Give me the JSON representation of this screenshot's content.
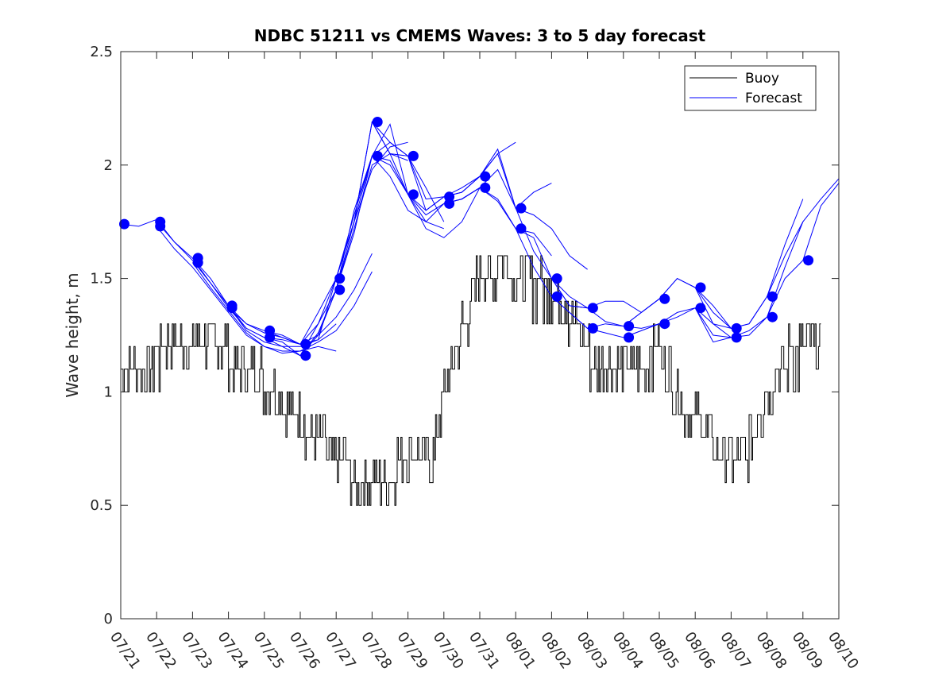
{
  "chart_data": {
    "type": "line",
    "title": "NDBC 51211 vs CMEMS Waves: 3 to 5 day forecast",
    "xlabel": "",
    "ylabel": "Wave height, m",
    "xlim": [
      "07/21",
      "08/10"
    ],
    "ylim": [
      0,
      2.5
    ],
    "yticks": [
      0,
      0.5,
      1,
      1.5,
      2,
      2.5
    ],
    "ytick_labels": [
      "0",
      "0.5",
      "1",
      "1.5",
      "2",
      "2.5"
    ],
    "xtick_labels": [
      "07/21",
      "07/22",
      "07/23",
      "07/24",
      "07/25",
      "07/26",
      "07/27",
      "07/28",
      "07/29",
      "07/30",
      "07/31",
      "08/01",
      "08/02",
      "08/03",
      "08/04",
      "08/05",
      "08/06",
      "08/07",
      "08/08",
      "08/09",
      "08/10"
    ],
    "grid": false,
    "legend": {
      "placement": "top-right",
      "entries": [
        "Buoy",
        "Forecast"
      ]
    },
    "colors": {
      "buoy": "#000000",
      "forecast": "#0000ff"
    },
    "x_units": "days since 07/21",
    "series": [
      {
        "name": "Buoy",
        "x": [
          0,
          0.3,
          0.6,
          0.9,
          1.2,
          1.5,
          1.8,
          2.1,
          2.4,
          2.7,
          3.0,
          3.3,
          3.6,
          3.9,
          4.2,
          4.5,
          4.8,
          5.1,
          5.4,
          5.7,
          6.0,
          6.3,
          6.6,
          6.9,
          7.2,
          7.5,
          7.8,
          8.1,
          8.4,
          8.7,
          9.0,
          9.3,
          9.6,
          9.9,
          10.2,
          10.5,
          10.8,
          11.1,
          11.4,
          11.7,
          12.0,
          12.3,
          12.6,
          12.9,
          13.2,
          13.5,
          13.8,
          14.1,
          14.4,
          14.7,
          15.0,
          15.3,
          15.6,
          15.9,
          16.2,
          16.5,
          16.8,
          17.1,
          17.4,
          17.7,
          18.0,
          18.3,
          18.6,
          18.9,
          19.2,
          19.5
        ],
        "y": [
          1.05,
          1.05,
          1.1,
          1.15,
          1.15,
          1.2,
          1.2,
          1.25,
          1.2,
          1.2,
          1.15,
          1.1,
          1.05,
          1.05,
          1.0,
          0.95,
          0.9,
          0.85,
          0.8,
          0.75,
          0.7,
          0.65,
          0.62,
          0.62,
          0.6,
          0.6,
          0.7,
          0.75,
          0.72,
          0.7,
          1.0,
          1.15,
          1.3,
          1.45,
          1.5,
          1.55,
          1.55,
          1.5,
          1.45,
          1.45,
          1.45,
          1.4,
          1.3,
          1.2,
          1.1,
          1.05,
          1.05,
          1.05,
          1.1,
          1.15,
          1.15,
          1.05,
          0.95,
          0.9,
          0.85,
          0.75,
          0.7,
          0.65,
          0.7,
          0.85,
          1.0,
          1.1,
          1.15,
          1.15,
          1.2,
          1.25
        ]
      },
      {
        "name": "Forecast",
        "runs": [
          {
            "x": [
              0,
              0.5,
              1.0,
              1.5,
              2.0,
              2.5,
              3.0,
              3.5,
              4.0,
              4.5,
              5.0
            ],
            "y": [
              1.74,
              1.73,
              1.76,
              1.66,
              1.58,
              1.48,
              1.37,
              1.3,
              1.26,
              1.24,
              1.21
            ]
          },
          {
            "x": [
              1.0,
              1.5,
              2.0,
              2.5,
              3.0,
              3.5,
              4.0,
              4.5,
              5.0,
              5.5,
              6.0
            ],
            "y": [
              1.75,
              1.66,
              1.59,
              1.48,
              1.38,
              1.27,
              1.22,
              1.2,
              1.2,
              1.23,
              1.3
            ]
          },
          {
            "x": [
              1.0,
              1.5,
              2.0,
              2.5,
              3.0,
              3.5,
              4.0,
              4.5,
              5.0,
              5.5,
              6.0
            ],
            "y": [
              1.73,
              1.63,
              1.55,
              1.45,
              1.35,
              1.25,
              1.2,
              1.17,
              1.18,
              1.2,
              1.18
            ]
          },
          {
            "x": [
              2.0,
              2.5,
              3.0,
              3.5,
              4.0,
              4.5,
              5.0,
              5.5,
              6.0,
              6.5,
              7.0
            ],
            "y": [
              1.59,
              1.5,
              1.38,
              1.28,
              1.24,
              1.23,
              1.21,
              1.25,
              1.33,
              1.45,
              1.61
            ]
          },
          {
            "x": [
              2.0,
              2.5,
              3.0,
              3.5,
              4.0,
              4.5,
              5.0,
              5.5,
              6.0,
              6.5,
              7.0
            ],
            "y": [
              1.57,
              1.46,
              1.36,
              1.26,
              1.2,
              1.18,
              1.18,
              1.22,
              1.27,
              1.38,
              1.53
            ]
          },
          {
            "x": [
              3.0,
              3.5,
              4.0,
              4.5,
              5.0,
              5.5,
              6.0,
              6.5,
              7.0,
              7.5,
              8.0
            ],
            "y": [
              1.38,
              1.3,
              1.27,
              1.25,
              1.21,
              1.3,
              1.5,
              1.75,
              1.98,
              2.08,
              2.1
            ]
          },
          {
            "x": [
              3.0,
              3.5,
              4.0,
              4.5,
              5.0,
              5.5,
              6.0,
              6.5,
              7.0,
              7.5,
              8.0
            ],
            "y": [
              1.37,
              1.28,
              1.24,
              1.2,
              1.16,
              1.26,
              1.45,
              1.72,
              2.0,
              2.05,
              2.02
            ]
          },
          {
            "x": [
              4.0,
              4.5,
              5.0,
              5.5,
              6.0,
              6.5,
              7.0,
              7.5,
              8.0,
              8.5,
              9.0
            ],
            "y": [
              1.27,
              1.24,
              1.21,
              1.23,
              1.5,
              1.78,
              2.04,
              2.1,
              2.04,
              1.9,
              1.75
            ]
          },
          {
            "x": [
              4.0,
              4.5,
              5.0,
              5.5,
              6.0,
              6.5,
              7.0,
              7.5,
              8.0,
              8.5,
              9.0
            ],
            "y": [
              1.24,
              1.22,
              1.16,
              1.25,
              1.45,
              1.75,
              2.04,
              2.18,
              1.87,
              1.75,
              1.72
            ]
          },
          {
            "x": [
              5.0,
              5.5,
              6.0,
              6.5,
              7.0,
              7.5,
              8.0,
              8.5,
              9.0,
              9.5,
              10.0
            ],
            "y": [
              1.21,
              1.35,
              1.5,
              1.75,
              2.19,
              2.05,
              1.87,
              1.8,
              1.86,
              1.88,
              1.95
            ]
          },
          {
            "x": [
              5.0,
              5.5,
              6.0,
              6.5,
              7.0,
              7.5,
              8.0,
              8.5,
              9.0,
              9.5,
              10.0
            ],
            "y": [
              1.16,
              1.3,
              1.45,
              1.8,
              2.04,
              1.95,
              1.8,
              1.75,
              1.83,
              1.85,
              1.9
            ]
          },
          {
            "x": [
              6.0,
              6.5,
              7.0,
              7.5,
              8.0,
              8.5,
              9.0,
              9.5,
              10.0,
              10.5,
              11.0
            ],
            "y": [
              1.5,
              1.75,
              2.19,
              2.05,
              2.04,
              1.8,
              1.86,
              1.88,
              1.95,
              2.05,
              2.1
            ]
          },
          {
            "x": [
              6.0,
              6.5,
              7.0,
              7.5,
              8.0,
              8.5,
              9.0,
              9.5,
              10.0,
              10.5,
              11.0
            ],
            "y": [
              1.45,
              1.7,
              2.04,
              2.0,
              1.87,
              1.72,
              1.68,
              1.75,
              1.9,
              1.98,
              1.81
            ]
          },
          {
            "x": [
              7.0,
              7.5,
              8.0,
              8.5,
              9.0,
              9.5,
              10.0,
              10.5,
              11.0,
              11.5,
              12.0
            ],
            "y": [
              2.19,
              2.1,
              2.04,
              1.85,
              1.86,
              1.9,
              1.95,
              2.07,
              1.81,
              1.88,
              1.92
            ]
          },
          {
            "x": [
              7.0,
              7.5,
              8.0,
              8.5,
              9.0,
              9.5,
              10.0,
              10.5,
              11.0,
              11.5,
              12.0
            ],
            "y": [
              2.04,
              2.02,
              1.87,
              1.78,
              1.83,
              1.85,
              1.9,
              1.85,
              1.72,
              1.7,
              1.6
            ]
          },
          {
            "x": [
              9.0,
              9.5,
              10.0,
              10.5,
              11.0,
              11.5,
              12.0,
              12.5,
              13.0
            ],
            "y": [
              1.86,
              1.88,
              1.95,
              2.05,
              1.81,
              1.78,
              1.72,
              1.6,
              1.54
            ]
          },
          {
            "x": [
              9.0,
              9.5,
              10.0,
              10.5,
              11.0,
              11.5,
              12.0,
              12.5,
              13.0
            ],
            "y": [
              1.83,
              1.85,
              1.9,
              1.84,
              1.72,
              1.68,
              1.5,
              1.42,
              1.37
            ]
          },
          {
            "x": [
              11.0,
              11.5,
              12.0,
              12.5,
              13.0,
              13.5,
              14.0,
              14.5,
              15.0
            ],
            "y": [
              1.81,
              1.62,
              1.5,
              1.38,
              1.37,
              1.4,
              1.4,
              1.35,
              1.41
            ]
          },
          {
            "x": [
              11.0,
              11.5,
              12.0,
              12.5,
              13.0,
              13.5,
              14.0,
              14.5,
              15.0
            ],
            "y": [
              1.72,
              1.55,
              1.42,
              1.35,
              1.28,
              1.3,
              1.29,
              1.28,
              1.3
            ]
          },
          {
            "x": [
              12.0,
              12.5,
              13.0,
              13.5,
              14.0,
              14.5,
              15.0,
              15.5,
              16.0,
              16.5,
              17.0
            ],
            "y": [
              1.5,
              1.38,
              1.37,
              1.31,
              1.29,
              1.35,
              1.41,
              1.5,
              1.46,
              1.38,
              1.28
            ]
          },
          {
            "x": [
              12.0,
              12.5,
              13.0,
              13.5,
              14.0,
              14.5,
              15.0,
              15.5,
              16.0,
              16.5,
              17.0
            ],
            "y": [
              1.42,
              1.35,
              1.28,
              1.26,
              1.24,
              1.27,
              1.3,
              1.33,
              1.37,
              1.3,
              1.24
            ]
          },
          {
            "x": [
              14.0,
              14.5,
              15.0,
              15.5,
              16.0,
              16.5,
              17.0,
              17.5,
              18.0,
              18.5,
              19.0
            ],
            "y": [
              1.29,
              1.35,
              1.41,
              1.5,
              1.46,
              1.3,
              1.28,
              1.3,
              1.42,
              1.65,
              1.85
            ]
          },
          {
            "x": [
              14.0,
              14.5,
              15.0,
              15.5,
              16.0,
              16.5,
              17.0,
              17.5,
              18.0,
              18.5,
              19.0
            ],
            "y": [
              1.24,
              1.27,
              1.3,
              1.35,
              1.37,
              1.22,
              1.24,
              1.27,
              1.33,
              1.55,
              1.75
            ]
          },
          {
            "x": [
              16.0,
              16.5,
              17.0,
              17.5,
              18.0,
              18.5,
              19.0,
              19.5,
              20.0
            ],
            "y": [
              1.46,
              1.35,
              1.28,
              1.3,
              1.42,
              1.6,
              1.75,
              1.85,
              1.94
            ]
          },
          {
            "x": [
              16.0,
              16.5,
              17.0,
              17.5,
              18.0,
              18.5,
              19.0,
              19.5,
              20.0
            ],
            "y": [
              1.37,
              1.25,
              1.24,
              1.25,
              1.33,
              1.5,
              1.58,
              1.82,
              1.92
            ]
          }
        ],
        "points": [
          {
            "x": 0.1,
            "y": 1.74
          },
          {
            "x": 1.1,
            "y": 1.75
          },
          {
            "x": 1.1,
            "y": 1.73
          },
          {
            "x": 2.15,
            "y": 1.59
          },
          {
            "x": 2.15,
            "y": 1.57
          },
          {
            "x": 3.1,
            "y": 1.38
          },
          {
            "x": 3.1,
            "y": 1.37
          },
          {
            "x": 4.15,
            "y": 1.27
          },
          {
            "x": 4.15,
            "y": 1.24
          },
          {
            "x": 5.15,
            "y": 1.21
          },
          {
            "x": 5.15,
            "y": 1.16
          },
          {
            "x": 6.1,
            "y": 1.5
          },
          {
            "x": 6.1,
            "y": 1.45
          },
          {
            "x": 7.15,
            "y": 2.19
          },
          {
            "x": 7.15,
            "y": 2.04
          },
          {
            "x": 8.15,
            "y": 2.04
          },
          {
            "x": 8.15,
            "y": 1.87
          },
          {
            "x": 9.15,
            "y": 1.86
          },
          {
            "x": 9.15,
            "y": 1.83
          },
          {
            "x": 10.15,
            "y": 1.95
          },
          {
            "x": 10.15,
            "y": 1.9
          },
          {
            "x": 11.15,
            "y": 1.81
          },
          {
            "x": 11.15,
            "y": 1.72
          },
          {
            "x": 12.15,
            "y": 1.5
          },
          {
            "x": 12.15,
            "y": 1.42
          },
          {
            "x": 13.15,
            "y": 1.37
          },
          {
            "x": 13.15,
            "y": 1.28
          },
          {
            "x": 14.15,
            "y": 1.29
          },
          {
            "x": 14.15,
            "y": 1.24
          },
          {
            "x": 15.15,
            "y": 1.41
          },
          {
            "x": 15.15,
            "y": 1.3
          },
          {
            "x": 16.15,
            "y": 1.46
          },
          {
            "x": 16.15,
            "y": 1.37
          },
          {
            "x": 17.15,
            "y": 1.28
          },
          {
            "x": 17.15,
            "y": 1.24
          },
          {
            "x": 18.15,
            "y": 1.42
          },
          {
            "x": 18.15,
            "y": 1.33
          },
          {
            "x": 19.15,
            "y": 1.58
          }
        ]
      }
    ]
  }
}
